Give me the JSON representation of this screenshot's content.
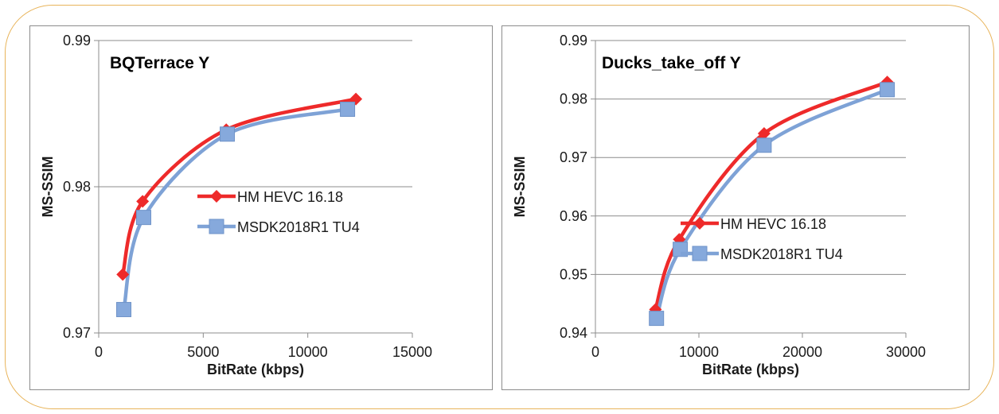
{
  "colors": {
    "series_red": "#ee2a2a",
    "series_blue": "#7ea2d6",
    "series_blue_marker": "#86a9dc",
    "frame": "#e8b45a",
    "grid": "#8c8c8c"
  },
  "chart_data": [
    {
      "type": "line",
      "title": "BQTerrace Y",
      "xlabel": "BitRate (kbps)",
      "ylabel": "MS-SSIM",
      "xlim": [
        0,
        15000
      ],
      "ylim": [
        0.97,
        0.99
      ],
      "xticks": [
        "0",
        "5000",
        "10000",
        "15000"
      ],
      "yticks": [
        "0.97",
        "0.98",
        "0.99"
      ],
      "grid": true,
      "legend_position": "center-right",
      "series": [
        {
          "name": "HM HEVC 16.18",
          "marker": "diamond",
          "color": "#ee2a2a",
          "x": [
            1150,
            2100,
            6100,
            12300
          ],
          "y": [
            0.974,
            0.979,
            0.9839,
            0.986
          ]
        },
        {
          "name": "MSDK2018R1 TU4",
          "marker": "square",
          "color": "#7ea2d6",
          "x": [
            1200,
            2150,
            6150,
            11900
          ],
          "y": [
            0.9716,
            0.9779,
            0.9836,
            0.9853
          ]
        }
      ]
    },
    {
      "type": "line",
      "title": "Ducks_take_off Y",
      "xlabel": "BitRate (kbps)",
      "ylabel": "MS-SSIM",
      "xlim": [
        0,
        30000
      ],
      "ylim": [
        0.94,
        0.99
      ],
      "xticks": [
        "0",
        "10000",
        "20000",
        "30000"
      ],
      "yticks": [
        "0.94",
        "0.95",
        "0.96",
        "0.97",
        "0.98",
        "0.99"
      ],
      "grid": true,
      "legend_position": "center-right",
      "series": [
        {
          "name": "HM HEVC 16.18",
          "marker": "diamond",
          "color": "#ee2a2a",
          "x": [
            5800,
            8100,
            16300,
            28200
          ],
          "y": [
            0.944,
            0.956,
            0.9741,
            0.9829
          ]
        },
        {
          "name": "MSDK2018R1 TU4",
          "marker": "square",
          "color": "#7ea2d6",
          "x": [
            5900,
            8200,
            16300,
            28200
          ],
          "y": [
            0.9425,
            0.9543,
            0.9721,
            0.9816
          ]
        }
      ]
    }
  ]
}
